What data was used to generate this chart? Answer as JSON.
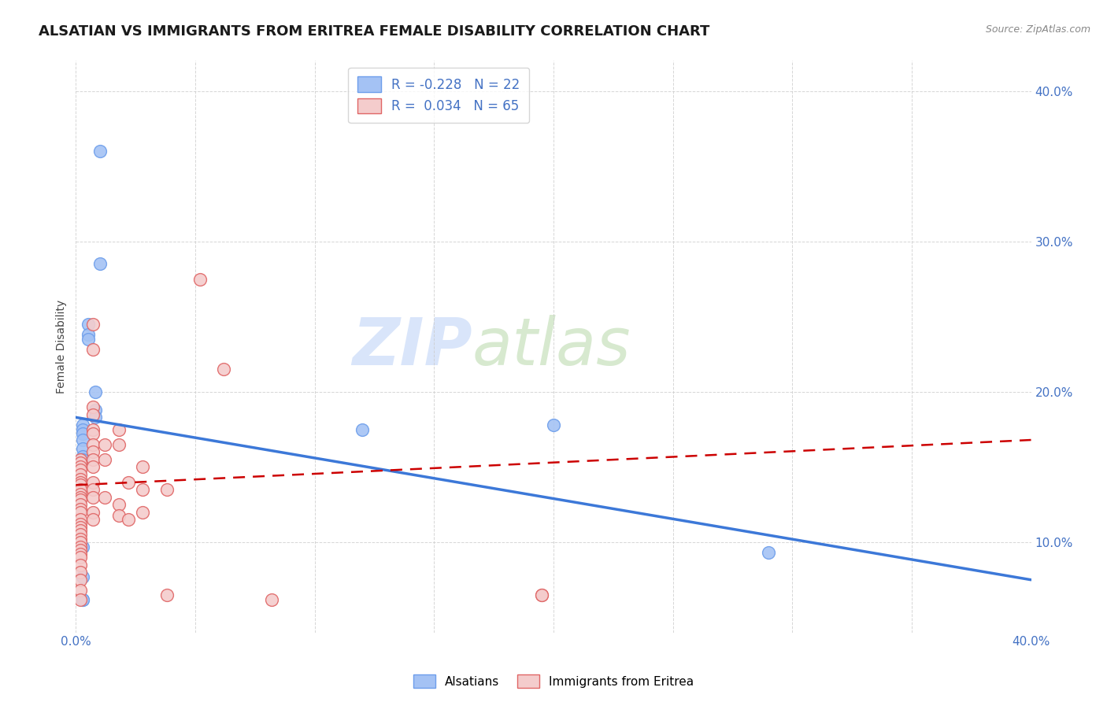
{
  "title": "ALSATIAN VS IMMIGRANTS FROM ERITREA FEMALE DISABILITY CORRELATION CHART",
  "source": "Source: ZipAtlas.com",
  "ylabel": "Female Disability",
  "watermark_zip": "ZIP",
  "watermark_atlas": "atlas",
  "xlim": [
    0.0,
    0.4
  ],
  "ylim": [
    0.04,
    0.42
  ],
  "yticks": [
    0.1,
    0.2,
    0.3,
    0.4
  ],
  "ytick_labels": [
    "10.0%",
    "20.0%",
    "30.0%",
    "40.0%"
  ],
  "xticks": [
    0.0,
    0.05,
    0.1,
    0.15,
    0.2,
    0.25,
    0.3,
    0.35,
    0.4
  ],
  "xtick_labels": [
    "0.0%",
    "",
    "",
    "",
    "",
    "",
    "",
    "",
    "40.0%"
  ],
  "blue_R": "-0.228",
  "blue_N": "22",
  "pink_R": "0.034",
  "pink_N": "65",
  "legend_label_blue": "Alsatians",
  "legend_label_pink": "Immigrants from Eritrea",
  "blue_color": "#a4c2f4",
  "pink_color": "#f4cccc",
  "blue_edge_color": "#6d9eeb",
  "pink_edge_color": "#e06666",
  "blue_line_color": "#3c78d8",
  "pink_line_color": "#cc0000",
  "blue_scatter_x": [
    0.01,
    0.01,
    0.005,
    0.005,
    0.005,
    0.008,
    0.008,
    0.008,
    0.003,
    0.003,
    0.003,
    0.003,
    0.003,
    0.003,
    0.003,
    0.12,
    0.2,
    0.003,
    0.003,
    0.003,
    0.29,
    0.003
  ],
  "blue_scatter_y": [
    0.36,
    0.285,
    0.245,
    0.238,
    0.235,
    0.2,
    0.188,
    0.183,
    0.178,
    0.175,
    0.172,
    0.168,
    0.162,
    0.157,
    0.155,
    0.175,
    0.178,
    0.097,
    0.077,
    0.062,
    0.093,
    0.062
  ],
  "pink_scatter_x": [
    0.002,
    0.002,
    0.002,
    0.002,
    0.002,
    0.002,
    0.002,
    0.002,
    0.002,
    0.002,
    0.002,
    0.002,
    0.002,
    0.002,
    0.002,
    0.002,
    0.002,
    0.002,
    0.002,
    0.002,
    0.002,
    0.002,
    0.002,
    0.002,
    0.002,
    0.002,
    0.002,
    0.002,
    0.002,
    0.002,
    0.002,
    0.007,
    0.007,
    0.007,
    0.007,
    0.007,
    0.007,
    0.007,
    0.007,
    0.007,
    0.007,
    0.007,
    0.007,
    0.007,
    0.007,
    0.007,
    0.012,
    0.012,
    0.012,
    0.018,
    0.018,
    0.018,
    0.018,
    0.022,
    0.022,
    0.028,
    0.028,
    0.028,
    0.038,
    0.038,
    0.052,
    0.062,
    0.082,
    0.195,
    0.195
  ],
  "pink_scatter_y": [
    0.155,
    0.153,
    0.15,
    0.148,
    0.145,
    0.142,
    0.14,
    0.138,
    0.135,
    0.132,
    0.13,
    0.128,
    0.125,
    0.122,
    0.12,
    0.115,
    0.112,
    0.11,
    0.108,
    0.105,
    0.102,
    0.1,
    0.097,
    0.095,
    0.092,
    0.09,
    0.085,
    0.08,
    0.075,
    0.068,
    0.062,
    0.245,
    0.228,
    0.19,
    0.185,
    0.175,
    0.172,
    0.165,
    0.16,
    0.155,
    0.15,
    0.14,
    0.135,
    0.13,
    0.12,
    0.115,
    0.165,
    0.155,
    0.13,
    0.175,
    0.165,
    0.125,
    0.118,
    0.14,
    0.115,
    0.15,
    0.135,
    0.12,
    0.135,
    0.065,
    0.275,
    0.215,
    0.062,
    0.065,
    0.065
  ],
  "blue_line_x0": 0.0,
  "blue_line_y0": 0.183,
  "blue_line_x1": 0.4,
  "blue_line_y1": 0.075,
  "pink_line_x0": 0.0,
  "pink_line_y0": 0.138,
  "pink_line_x1": 0.4,
  "pink_line_y1": 0.168,
  "background_color": "#ffffff",
  "grid_color": "#cccccc",
  "title_fontsize": 13,
  "axis_label_fontsize": 10,
  "tick_fontsize": 11,
  "watermark_fontsize_zip": 60,
  "watermark_fontsize_atlas": 60
}
